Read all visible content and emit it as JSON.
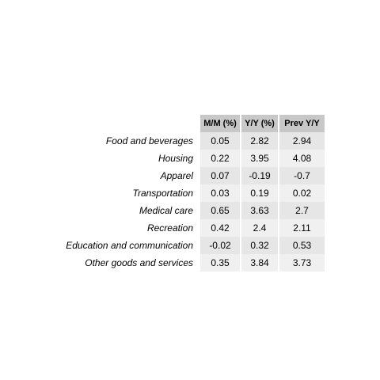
{
  "chart_data": {
    "type": "table",
    "columns": [
      "M/M (%)",
      "Y/Y (%)",
      "Prev Y/Y"
    ],
    "rows": [
      {
        "label": "Food and beverages",
        "values": [
          "0.05",
          "2.82",
          "2.94"
        ]
      },
      {
        "label": "Housing",
        "values": [
          "0.22",
          "3.95",
          "4.08"
        ]
      },
      {
        "label": "Apparel",
        "values": [
          "0.07",
          "-0.19",
          "-0.7"
        ]
      },
      {
        "label": "Transportation",
        "values": [
          "0.03",
          "0.19",
          "0.02"
        ]
      },
      {
        "label": "Medical care",
        "values": [
          "0.65",
          "3.63",
          "2.7"
        ]
      },
      {
        "label": "Recreation",
        "values": [
          "0.42",
          "2.4",
          "2.11"
        ]
      },
      {
        "label": "Education and communication",
        "values": [
          "-0.02",
          "0.32",
          "0.53"
        ]
      },
      {
        "label": "Other goods and services",
        "values": [
          "0.35",
          "3.84",
          "3.73"
        ]
      }
    ]
  }
}
